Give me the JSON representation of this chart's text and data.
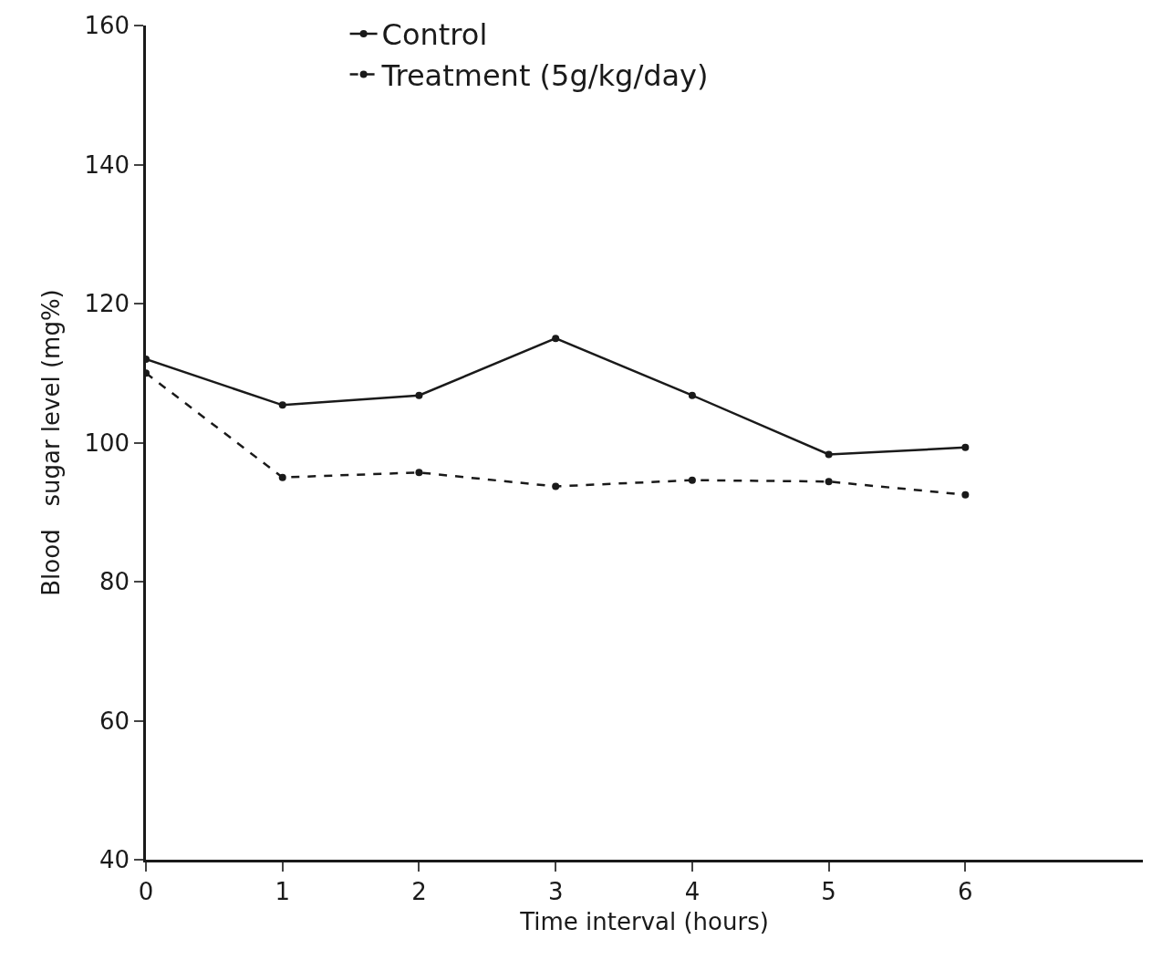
{
  "chart_data": {
    "type": "line",
    "xlabel": "Time interval (hours)",
    "ylabel": "Blood   sugar level (mg%)",
    "x": [
      0,
      1,
      2,
      3,
      4,
      5,
      6
    ],
    "series": [
      {
        "name": "Control",
        "color": "#1a1a1a",
        "values": [
          112,
          105.4,
          106.8,
          115,
          106.8,
          98.3,
          99.3
        ],
        "line_style": "solid"
      },
      {
        "name": "Treatment (5g/kg/day)",
        "color": "#1a1a1a",
        "values": [
          110,
          95,
          95.7,
          93.7,
          94.6,
          94.4,
          92.5
        ],
        "line_style": "dashed"
      }
    ],
    "xlim": [
      0,
      7.3
    ],
    "xticks": [
      0,
      1,
      2,
      3,
      4,
      5,
      6
    ],
    "ylim": [
      40,
      160
    ],
    "yticks": [
      40,
      60,
      80,
      100,
      120,
      140,
      160
    ],
    "grid": false,
    "legend": "top left",
    "marker": "circle"
  }
}
